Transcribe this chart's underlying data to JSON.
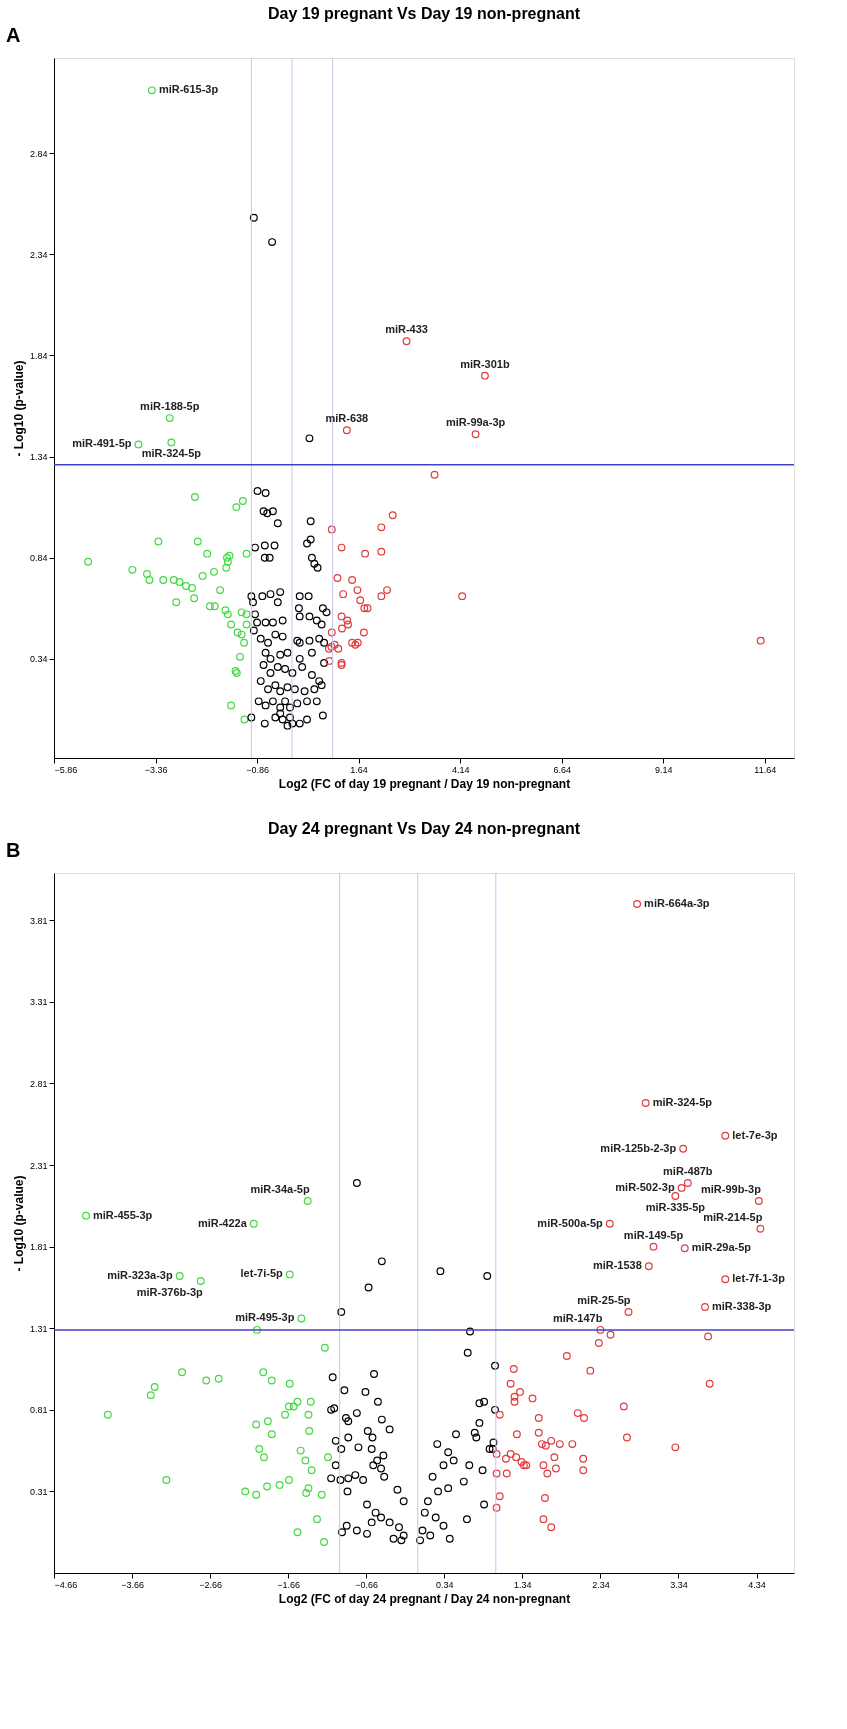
{
  "chart_data": [
    {
      "type": "scatter",
      "title": "Day 19 pregnant Vs Day 19 non-pregnant",
      "xlabel": "Log2 (FC of day 19 pregnant / Day 19 non-pregnant",
      "ylabel": "- Log10 (p-value)",
      "marker": "circle",
      "xlim": [
        -5.86,
        12.36
      ],
      "ylim": [
        -0.15,
        3.31
      ],
      "xticks": [
        -5.86,
        -3.36,
        -0.86,
        1.64,
        4.14,
        6.64,
        9.14,
        11.64
      ],
      "yticks": [
        0.34,
        0.84,
        1.34,
        1.84,
        2.34,
        2.84
      ],
      "ref_lines": [
        {
          "axis": "x",
          "value": -1,
          "color": "#c4c4f2"
        },
        {
          "axis": "x",
          "value": 0,
          "color": "#c4c4f2"
        },
        {
          "axis": "x",
          "value": 1,
          "color": "#c4c4f2"
        },
        {
          "axis": "y",
          "value": 1.3,
          "color": "#4040c8"
        }
      ],
      "series": [
        {
          "color": "#44d844",
          "x": [
            -3.45,
            -3.01,
            -3.78,
            -2.97,
            -5.02,
            -3.93,
            -3.57,
            -3.51,
            -3.17,
            -3.29,
            -2.91,
            -2.77,
            -2.61,
            -2.46,
            -2.85,
            -2.41,
            -2.39,
            -2.32,
            -2.09,
            -2.2,
            -1.92,
            -1.77,
            -2.02,
            -1.9,
            -1.6,
            -1.54,
            -1.58,
            -1.62,
            -1.37,
            -1.21,
            -1.12,
            -1.64,
            -1.58,
            -1.24,
            -1.12,
            -1.5,
            -1.34,
            -1.24,
            -1.18,
            -1.28,
            -1.39,
            -1.36,
            -1.5,
            -1.17,
            -1.12
          ],
          "values": [
            3.15,
            1.53,
            1.4,
            1.41,
            0.82,
            0.78,
            0.76,
            0.73,
            0.73,
            0.92,
            0.73,
            0.72,
            0.7,
            0.69,
            0.62,
            0.64,
            1.14,
            0.92,
            0.86,
            0.75,
            0.77,
            0.68,
            0.6,
            0.6,
            0.84,
            0.85,
            0.82,
            0.79,
            1.09,
            1.12,
            0.86,
            0.58,
            0.56,
            0.57,
            0.56,
            0.51,
            0.47,
            0.46,
            0.42,
            0.35,
            0.28,
            0.27,
            0.11,
            0.04,
            0.51
          ]
        },
        {
          "color": "#000000",
          "x": [
            -0.94,
            -0.49,
            0.43,
            -0.85,
            -0.65,
            -0.7,
            -0.61,
            -0.47,
            -0.35,
            0.46,
            0.46,
            0.37,
            -0.91,
            -0.67,
            -0.43,
            -0.67,
            -0.55,
            0.49,
            0.55,
            0.63,
            -1.0,
            -0.96,
            -0.73,
            -0.53,
            -0.29,
            -0.35,
            0.17,
            0.19,
            0.41,
            0.76,
            0.85,
            -0.91,
            -0.86,
            -0.65,
            -0.47,
            -0.23,
            0.19,
            0.43,
            0.61,
            0.73,
            -0.94,
            -0.77,
            -0.59,
            -0.41,
            -0.23,
            0.13,
            0.19,
            0.43,
            0.67,
            0.79,
            -0.65,
            -0.53,
            -0.29,
            -0.11,
            0.19,
            0.49,
            0.79,
            -0.7,
            -0.53,
            -0.35,
            -0.17,
            0.01,
            0.25,
            0.49,
            0.67,
            -0.77,
            -0.59,
            -0.41,
            -0.29,
            -0.11,
            0.07,
            0.31,
            0.55,
            0.73,
            -0.82,
            -0.65,
            -0.47,
            -0.29,
            -0.17,
            -0.05,
            0.13,
            0.37,
            0.61,
            0.76,
            -1.0,
            -0.67,
            -0.41,
            -0.23,
            -0.11,
            0.01,
            0.19,
            0.37,
            -0.29,
            -0.05
          ],
          "values": [
            2.52,
            2.4,
            1.43,
            1.17,
            1.16,
            1.07,
            1.06,
            1.07,
            1.01,
            1.02,
            0.93,
            0.91,
            0.89,
            0.9,
            0.9,
            0.84,
            0.84,
            0.84,
            0.81,
            0.79,
            0.65,
            0.62,
            0.65,
            0.66,
            0.67,
            0.62,
            0.59,
            0.65,
            0.65,
            0.59,
            0.57,
            0.56,
            0.52,
            0.52,
            0.52,
            0.53,
            0.55,
            0.55,
            0.53,
            0.51,
            0.48,
            0.44,
            0.42,
            0.46,
            0.45,
            0.43,
            0.42,
            0.43,
            0.44,
            0.42,
            0.37,
            0.34,
            0.36,
            0.37,
            0.34,
            0.37,
            0.32,
            0.31,
            0.27,
            0.3,
            0.29,
            0.27,
            0.3,
            0.26,
            0.23,
            0.23,
            0.19,
            0.21,
            0.18,
            0.2,
            0.19,
            0.18,
            0.19,
            0.21,
            0.13,
            0.11,
            0.13,
            0.1,
            0.13,
            0.1,
            0.12,
            0.13,
            0.13,
            0.06,
            0.05,
            0.02,
            0.05,
            0.04,
            0.01,
            0.02,
            0.02,
            0.04,
            0.07,
            0.05
          ]
        },
        {
          "color": "#e03c3c",
          "x": [
            2.82,
            4.75,
            1.35,
            4.52,
            3.51,
            11.54,
            4.19,
            2.2,
            2.48,
            2.2,
            2.34,
            2.2,
            0.98,
            1.22,
            1.12,
            1.48,
            1.26,
            1.61,
            1.8,
            1.68,
            1.78,
            1.86,
            1.22,
            1.36,
            1.23,
            1.38,
            1.77,
            1.62,
            1.48,
            1.56,
            0.98,
            1.05,
            0.97,
            0.91,
            1.14,
            1.22,
            1.22,
            0.92
          ],
          "values": [
            1.91,
            1.74,
            1.47,
            1.45,
            1.25,
            0.43,
            0.65,
            0.99,
            1.05,
            0.87,
            0.68,
            0.65,
            0.98,
            0.89,
            0.74,
            0.73,
            0.66,
            0.68,
            0.86,
            0.63,
            0.59,
            0.59,
            0.55,
            0.53,
            0.49,
            0.51,
            0.47,
            0.42,
            0.42,
            0.41,
            0.47,
            0.41,
            0.4,
            0.39,
            0.39,
            0.32,
            0.31,
            0.33
          ]
        }
      ],
      "annotations": [
        "A",
        {
          "text": "miR-615-3p",
          "x": -3.45,
          "y": 3.15
        },
        {
          "text": "miR-433",
          "x": 2.82,
          "y": 1.91
        },
        {
          "text": "miR-301b",
          "x": 4.75,
          "y": 1.74
        },
        {
          "text": "miR-638",
          "x": 1.35,
          "y": 1.47
        },
        {
          "text": "miR-99a-3p",
          "x": 4.52,
          "y": 1.45
        },
        {
          "text": "miR-188-5p",
          "x": -3.01,
          "y": 1.53
        },
        {
          "text": "miR-491-5p",
          "x": -3.78,
          "y": 1.4
        },
        {
          "text": "miR-324-5p",
          "x": -2.97,
          "y": 1.41
        }
      ]
    },
    {
      "type": "scatter",
      "title": "Day 24 pregnant Vs Day 24 non-pregnant",
      "xlabel": "Log2 (FC of day 24 pregnant / Day 24 non-pregnant",
      "ylabel": "- Log10 (p-value)",
      "marker": "circle",
      "xlim": [
        -4.66,
        4.82
      ],
      "ylim": [
        -0.19,
        4.1
      ],
      "xticks": [
        -4.66,
        -3.66,
        -2.66,
        -1.66,
        -0.66,
        0.34,
        1.34,
        2.34,
        3.34,
        4.34
      ],
      "yticks": [
        0.31,
        0.81,
        1.31,
        1.81,
        2.31,
        2.81,
        3.31,
        3.81
      ],
      "ref_lines": [
        {
          "axis": "x",
          "value": -1,
          "color": "#c4c4f2"
        },
        {
          "axis": "x",
          "value": 0,
          "color": "#c4c4f2"
        },
        {
          "axis": "x",
          "value": 1,
          "color": "#c4c4f2"
        },
        {
          "axis": "y",
          "value": 1.3,
          "color": "#4040c8"
        }
      ],
      "series": [
        {
          "color": "#44d844",
          "x": [
            -4.25,
            -2.1,
            -1.41,
            -3.05,
            -2.78,
            -1.64,
            -1.49,
            -2.06,
            -3.97,
            -3.42,
            -3.37,
            -3.22,
            -3.02,
            -2.71,
            -2.55,
            -1.98,
            -1.87,
            -1.64,
            -1.19,
            -2.07,
            -1.92,
            -1.87,
            -1.7,
            -1.65,
            -1.59,
            -1.54,
            -1.4,
            -1.37,
            -1.39,
            -2.03,
            -1.97,
            -1.5,
            -1.44,
            -1.36,
            -1.15,
            -2.21,
            -2.07,
            -1.93,
            -1.77,
            -1.65,
            -1.43,
            -1.4,
            -1.23,
            -1.29,
            -1.54,
            -1.2
          ],
          "values": [
            2.0,
            1.95,
            2.09,
            1.63,
            1.6,
            1.64,
            1.37,
            1.3,
            0.78,
            0.9,
            0.95,
            0.38,
            1.04,
            0.99,
            1.0,
            1.04,
            0.99,
            0.97,
            1.19,
            0.72,
            0.74,
            0.66,
            0.78,
            0.83,
            0.83,
            0.86,
            0.78,
            0.86,
            0.68,
            0.57,
            0.52,
            0.56,
            0.5,
            0.44,
            0.52,
            0.31,
            0.29,
            0.34,
            0.35,
            0.38,
            0.3,
            0.33,
            0.29,
            0.14,
            0.06,
            0.0
          ]
        },
        {
          "color": "#000000",
          "x": [
            -0.78,
            -0.46,
            -0.63,
            -0.98,
            0.29,
            0.89,
            0.67,
            0.64,
            0.99,
            0.85,
            0.79,
            0.99,
            0.79,
            0.75,
            0.73,
            0.97,
            0.92,
            0.96,
            0.25,
            0.49,
            0.39,
            0.46,
            0.33,
            0.19,
            0.66,
            0.83,
            0.59,
            0.39,
            0.26,
            0.85,
            0.63,
            0.13,
            0.09,
            0.23,
            0.33,
            0.41,
            0.06,
            0.16,
            0.03,
            -1.09,
            -0.94,
            -0.67,
            -0.56,
            -0.51,
            -1.11,
            -1.07,
            -0.78,
            -0.92,
            -0.89,
            -0.46,
            -0.36,
            -0.64,
            -0.58,
            -0.89,
            -1.05,
            -0.98,
            -0.76,
            -0.59,
            -0.57,
            -0.52,
            -0.44,
            -0.47,
            -1.05,
            -1.11,
            -0.99,
            -0.89,
            -0.8,
            -0.7,
            -0.43,
            -0.9,
            -0.65,
            -0.54,
            -0.47,
            -0.26,
            -0.18,
            -0.36,
            -0.91,
            -0.78,
            -0.59,
            -0.65,
            -0.97,
            -0.24,
            -0.18,
            -0.21,
            -0.31
          ],
          "values": [
            2.2,
            1.72,
            1.56,
            1.41,
            1.66,
            1.63,
            1.29,
            1.16,
            1.08,
            0.86,
            0.85,
            0.81,
            0.73,
            0.64,
            0.67,
            0.61,
            0.57,
            0.57,
            0.6,
            0.66,
            0.55,
            0.5,
            0.47,
            0.4,
            0.47,
            0.44,
            0.37,
            0.33,
            0.31,
            0.23,
            0.14,
            0.25,
            0.18,
            0.15,
            0.1,
            0.02,
            0.07,
            0.04,
            0.01,
            1.01,
            0.93,
            0.92,
            1.03,
            0.86,
            0.81,
            0.82,
            0.79,
            0.76,
            0.74,
            0.75,
            0.69,
            0.68,
            0.64,
            0.64,
            0.62,
            0.57,
            0.58,
            0.57,
            0.47,
            0.5,
            0.53,
            0.45,
            0.47,
            0.39,
            0.38,
            0.39,
            0.41,
            0.38,
            0.4,
            0.31,
            0.23,
            0.18,
            0.15,
            0.32,
            0.25,
            0.12,
            0.1,
            0.07,
            0.12,
            0.05,
            0.06,
            0.09,
            0.04,
            0.01,
            0.02
          ]
        },
        {
          "color": "#e03c3c",
          "x": [
            2.81,
            2.92,
            3.94,
            3.4,
            3.46,
            3.38,
            3.3,
            4.37,
            4.39,
            2.46,
            3.02,
            3.42,
            2.96,
            3.94,
            3.68,
            2.7,
            2.34,
            1.23,
            1.19,
            1.31,
            1.24,
            1.24,
            1.47,
            1.05,
            1.27,
            1.55,
            1.55,
            1.59,
            1.71,
            1.64,
            1.82,
            1.75,
            1.61,
            1.66,
            1.77,
            1.39,
            1.36,
            1.33,
            1.26,
            1.19,
            1.13,
            1.01,
            1.14,
            1.01,
            1.05,
            1.01,
            1.63,
            1.61,
            1.71,
            1.91,
            2.21,
            2.05,
            2.13,
            1.98,
            2.12,
            2.12,
            2.32,
            2.47,
            2.64,
            2.68,
            3.3,
            3.72,
            3.74
          ],
          "values": [
            3.91,
            2.69,
            2.49,
            2.41,
            2.2,
            2.17,
            2.12,
            2.09,
            1.92,
            1.95,
            1.81,
            1.8,
            1.69,
            1.61,
            1.44,
            1.41,
            1.3,
            1.06,
            0.97,
            0.92,
            0.89,
            0.86,
            0.88,
            0.78,
            0.66,
            0.76,
            0.67,
            0.6,
            0.62,
            0.59,
            0.6,
            0.52,
            0.47,
            0.42,
            0.45,
            0.47,
            0.47,
            0.49,
            0.52,
            0.54,
            0.51,
            0.54,
            0.42,
            0.42,
            0.28,
            0.21,
            0.27,
            0.14,
            0.09,
            1.14,
            1.05,
            0.79,
            0.76,
            0.6,
            0.51,
            0.44,
            1.22,
            1.27,
            0.83,
            0.64,
            0.58,
            1.26,
            0.97
          ]
        }
      ],
      "annotations": [
        "B",
        {
          "text": "miR-664a-3p",
          "x": 2.81,
          "y": 3.91
        },
        {
          "text": "miR-324-5p",
          "x": 2.92,
          "y": 2.69
        },
        {
          "text": "let-7e-3p",
          "x": 3.94,
          "y": 2.49
        },
        {
          "text": "miR-125b-2-3p",
          "x": 3.4,
          "y": 2.41
        },
        {
          "text": "miR-487b",
          "x": 3.46,
          "y": 2.2
        },
        {
          "text": "miR-502-3p",
          "x": 3.38,
          "y": 2.17
        },
        {
          "text": "miR-335-5p",
          "x": 3.3,
          "y": 2.12
        },
        {
          "text": "miR-99b-3p",
          "x": 4.37,
          "y": 2.09
        },
        {
          "text": "miR-214-5p",
          "x": 4.39,
          "y": 1.92
        },
        {
          "text": "miR-500a-5p",
          "x": 2.46,
          "y": 1.95
        },
        {
          "text": "miR-149-5p",
          "x": 3.02,
          "y": 1.81
        },
        {
          "text": "miR-29a-5p",
          "x": 3.42,
          "y": 1.8
        },
        {
          "text": "miR-1538",
          "x": 2.96,
          "y": 1.69
        },
        {
          "text": "let-7f-1-3p",
          "x": 3.94,
          "y": 1.61
        },
        {
          "text": "miR-338-3p",
          "x": 3.68,
          "y": 1.44
        },
        {
          "text": "miR-25-5p",
          "x": 2.7,
          "y": 1.41
        },
        {
          "text": "miR-147b",
          "x": 2.34,
          "y": 1.3
        },
        {
          "text": "miR-455-3p",
          "x": -4.25,
          "y": 2.0
        },
        {
          "text": "miR-422a",
          "x": -2.1,
          "y": 1.95
        },
        {
          "text": "miR-34a-5p",
          "x": -1.41,
          "y": 2.09
        },
        {
          "text": "miR-323a-3p",
          "x": -3.05,
          "y": 1.63
        },
        {
          "text": "miR-376b-3p",
          "x": -2.78,
          "y": 1.6
        },
        {
          "text": "let-7i-5p",
          "x": -1.64,
          "y": 1.64
        },
        {
          "text": "miR-495-3p",
          "x": -1.49,
          "y": 1.37
        }
      ]
    }
  ]
}
